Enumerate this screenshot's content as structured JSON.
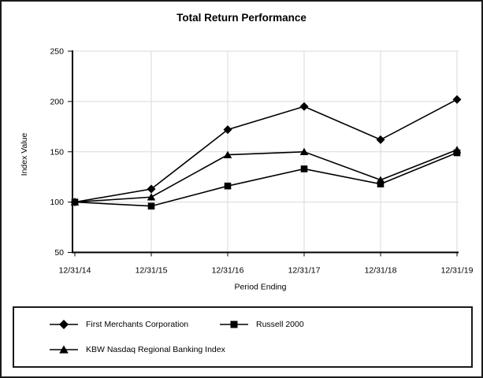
{
  "chart_data": {
    "type": "line",
    "title": "Total Return Performance",
    "xlabel": "Period Ending",
    "ylabel": "Index Value",
    "categories": [
      "12/31/14",
      "12/31/15",
      "12/31/16",
      "12/31/17",
      "12/31/18",
      "12/31/19"
    ],
    "series": [
      {
        "name": "First Merchants Corporation",
        "marker": "diamond",
        "values": [
          100,
          113,
          172,
          195,
          162,
          202
        ]
      },
      {
        "name": "Russell 2000",
        "marker": "square",
        "values": [
          100,
          96,
          116,
          133,
          118,
          149
        ]
      },
      {
        "name": "KBW Nasdaq Regional Banking Index",
        "marker": "triangle",
        "values": [
          100,
          105,
          147,
          150,
          122,
          152
        ]
      }
    ],
    "ylim": [
      50,
      250
    ],
    "yticks": [
      50,
      100,
      150,
      200,
      250
    ],
    "grid": true,
    "legend_position": "bottom-box",
    "colors": {
      "line": "#000000",
      "grid": "#d9d9d9",
      "text": "#000000",
      "background": "#ffffff"
    }
  }
}
